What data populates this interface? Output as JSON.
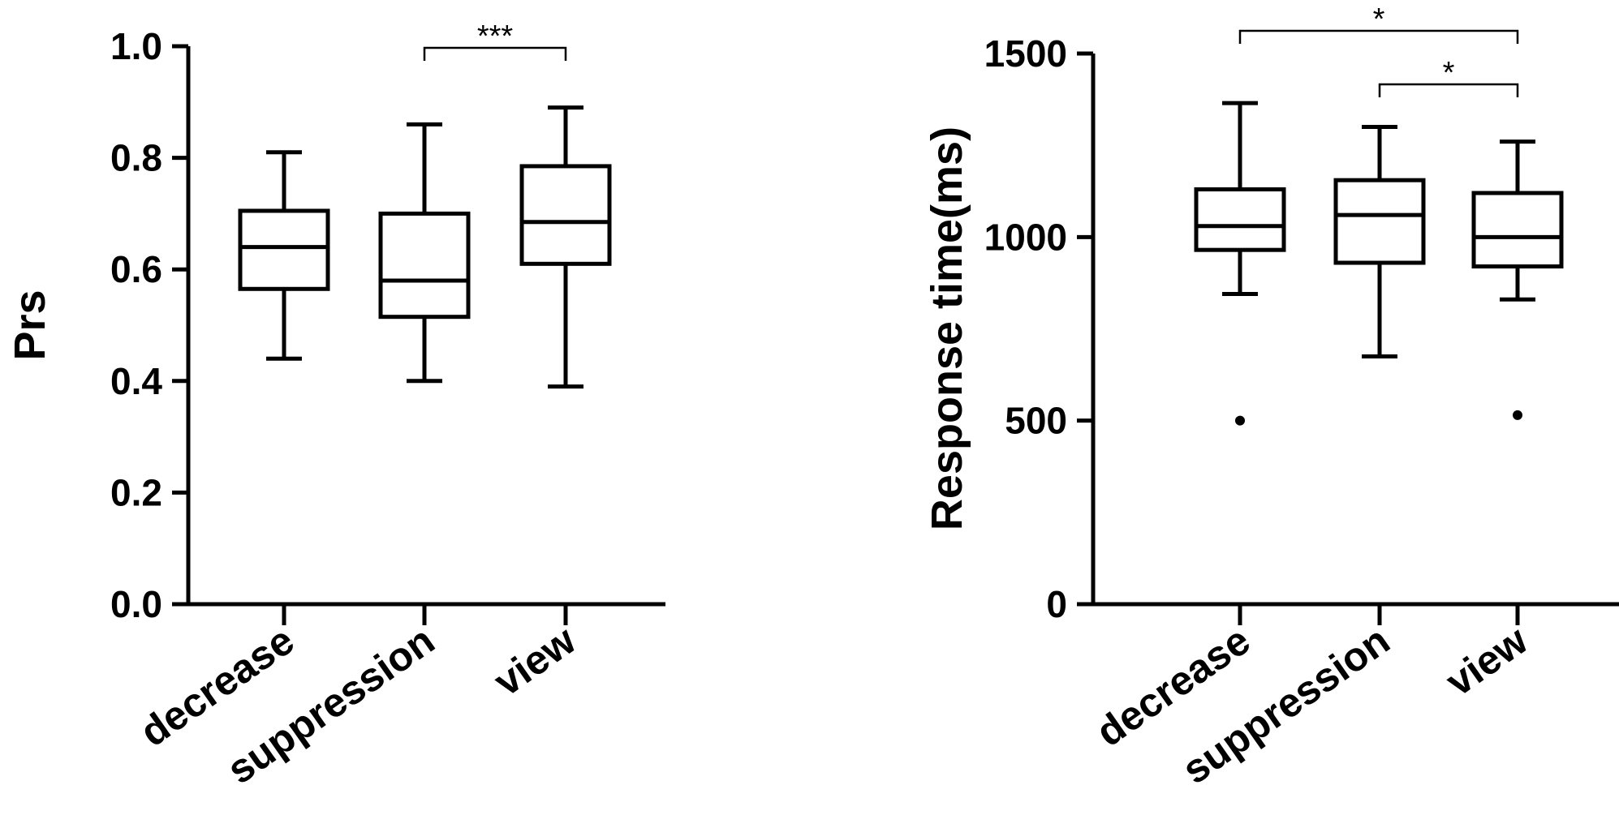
{
  "chart_data": [
    {
      "type": "box",
      "ylabel": "Prs",
      "ylim": [
        0,
        1.0
      ],
      "yticks": [
        "0.0",
        "0.2",
        "0.4",
        "0.6",
        "0.8",
        "1.0"
      ],
      "ytick_values": [
        0,
        0.2,
        0.4,
        0.6,
        0.8,
        1.0
      ],
      "categories": [
        "decrease",
        "suppression",
        "view"
      ],
      "boxes": [
        {
          "category": "decrease",
          "min": 0.44,
          "q1": 0.565,
          "median": 0.64,
          "q3": 0.705,
          "max": 0.81,
          "outliers": []
        },
        {
          "category": "suppression",
          "min": 0.4,
          "q1": 0.515,
          "median": 0.58,
          "q3": 0.7,
          "max": 0.86,
          "outliers": []
        },
        {
          "category": "view",
          "min": 0.39,
          "q1": 0.61,
          "median": 0.685,
          "q3": 0.785,
          "max": 0.89,
          "outliers": []
        }
      ],
      "significance": [
        {
          "from": "suppression",
          "to": "view",
          "label": "***",
          "level": 0
        }
      ]
    },
    {
      "type": "box",
      "ylabel": "Response time(ms)",
      "ylim": [
        0,
        1500
      ],
      "yticks": [
        "0",
        "500",
        "1000",
        "1500"
      ],
      "ytick_values": [
        0,
        500,
        1000,
        1500
      ],
      "categories": [
        "decrease",
        "suppression",
        "view"
      ],
      "boxes": [
        {
          "category": "decrease",
          "min": 845,
          "q1": 965,
          "median": 1030,
          "q3": 1130,
          "max": 1365,
          "outliers": [
            500
          ]
        },
        {
          "category": "suppression",
          "min": 675,
          "q1": 930,
          "median": 1060,
          "q3": 1155,
          "max": 1300,
          "outliers": []
        },
        {
          "category": "view",
          "min": 830,
          "q1": 920,
          "median": 1000,
          "q3": 1120,
          "max": 1260,
          "outliers": [
            515
          ]
        }
      ],
      "significance": [
        {
          "from": "decrease",
          "to": "view",
          "label": "*",
          "level": 1
        },
        {
          "from": "suppression",
          "to": "view",
          "label": "*",
          "level": 0
        }
      ]
    }
  ]
}
